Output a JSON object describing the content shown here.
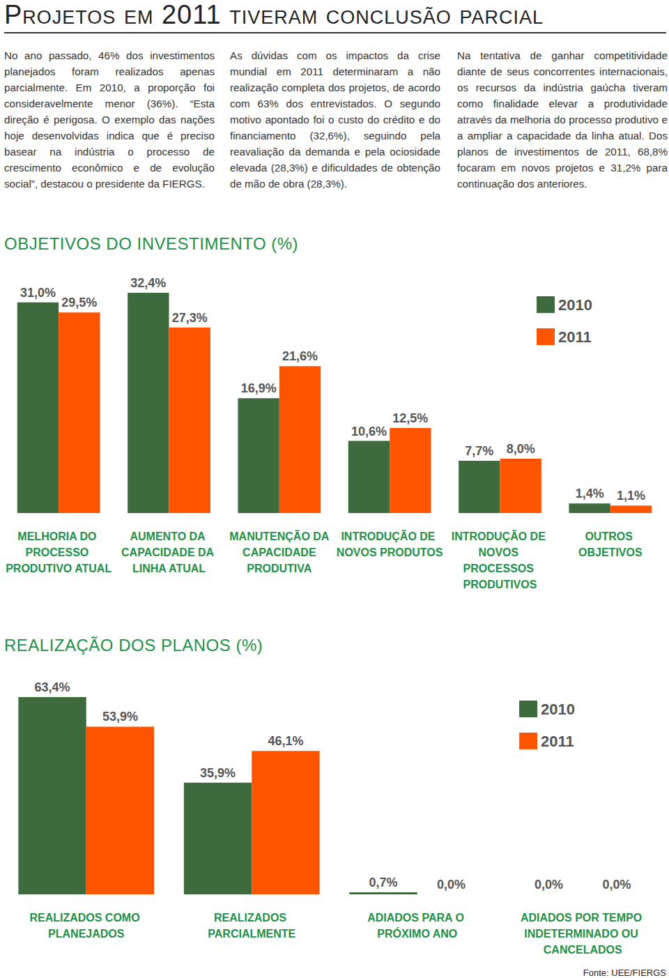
{
  "title": "Projetos em 2011 tiveram conclusão parcial",
  "paragraphs": [
    "No ano passado, 46% dos investimentos planejados foram realizados apenas parcialmente. Em 2010, a proporção foi consideravelmente menor (36%). “Esta direção é perigosa. O exemplo das nações hoje desenvolvidas indica que é preciso basear na indústria o processo de crescimento econômico e de evolução social”, destacou o presidente da FIERGS.",
    "As dúvidas com os impactos da crise mundial em 2011 determinaram a não realização completa dos projetos, de acordo com 63% dos entrevistados. O segundo motivo apontado foi o custo do crédito e do financiamento (32,6%), seguindo pela reavaliação da demanda e pela ociosidade elevada (28,3%) e dificuldades de obtenção de mão de obra (28,3%).",
    "Na tentativa de ganhar competitividade diante de seus concorrentes internacionais, os recursos da indústria gaúcha tiveram como finalidade elevar a produtividade através da melhoria do processo produtivo e a ampliar a capacidade da linha atual. Dos planos de investimentos de 2011, 68,8% focaram em novos projetos e 31,2% para continuação dos anteriores."
  ],
  "chart_data": [
    {
      "type": "bar",
      "title": "OBJETIVOS DO INVESTIMENTO (%)",
      "categories": [
        "MELHORIA DO PROCESSO PRODUTIVO ATUAL",
        "AUMENTO DA CAPACIDADE DA LINHA ATUAL",
        "MANUTENÇÃO DA CAPACIDADE PRODUTIVA",
        "INTRODUÇÃO DE NOVOS PRODUTOS",
        "INTRODUÇÃO DE NOVOS PROCESSOS PRODUTIVOS",
        "OUTROS OBJETIVOS"
      ],
      "series": [
        {
          "name": "2010",
          "color": "#3d6b3d",
          "values": [
            31.0,
            32.4,
            16.9,
            10.6,
            7.7,
            1.4
          ],
          "value_labels": [
            "31,0%",
            "32,4%",
            "16,9%",
            "10,6%",
            "7,7%",
            "1,4%"
          ]
        },
        {
          "name": "2011",
          "color": "#ff5500",
          "values": [
            29.5,
            27.3,
            21.6,
            12.5,
            8.0,
            1.1
          ],
          "value_labels": [
            "29,5%",
            "27,3%",
            "21,6%",
            "12,5%",
            "8,0%",
            "1,1%"
          ]
        }
      ],
      "ylim": [
        0,
        32.4
      ],
      "data_labels": true,
      "tick_labels": false,
      "grid": false,
      "legend": "upper right"
    },
    {
      "type": "bar",
      "title": "REALIZAÇÃO DOS PLANOS (%)",
      "categories": [
        "REALIZADOS COMO PLANEJADOS",
        "REALIZADOS PARCIALMENTE",
        "ADIADOS PARA O PRÓXIMO ANO",
        "ADIADOS POR TEMPO INDETERMINADO OU CANCELADOS"
      ],
      "series": [
        {
          "name": "2010",
          "color": "#3d6b3d",
          "values": [
            63.4,
            35.9,
            0.7,
            0.0
          ],
          "value_labels": [
            "63,4%",
            "35,9%",
            "0,7%",
            "0,0%"
          ]
        },
        {
          "name": "2011",
          "color": "#ff5500",
          "values": [
            53.9,
            46.1,
            0.0,
            0.0
          ],
          "value_labels": [
            "53,9%",
            "46,1%",
            "0,0%",
            "0,0%"
          ]
        }
      ],
      "ylim": [
        0,
        63.4
      ],
      "data_labels": true,
      "tick_labels": false,
      "grid": false,
      "legend": "upper right"
    }
  ],
  "source": "Fonte: UEE/FIERGS"
}
